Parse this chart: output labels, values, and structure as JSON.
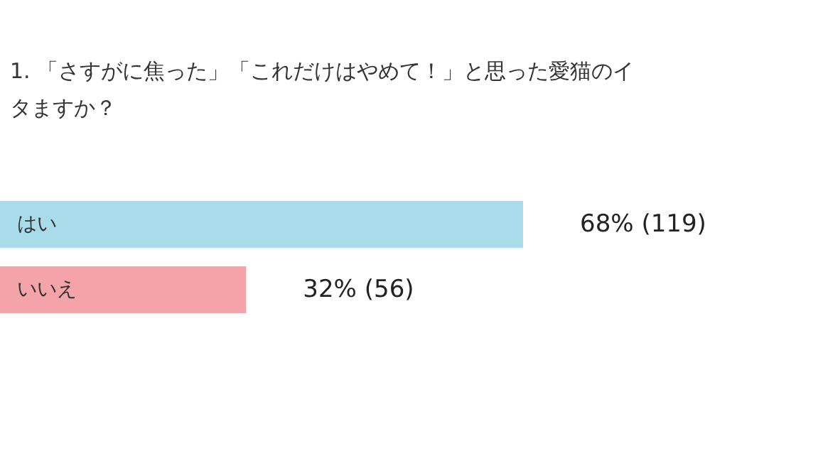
{
  "chart_data": {
    "type": "bar",
    "orientation": "horizontal",
    "title": "1. 「さすがに焦った」「これだけはやめて！」と思った愛猫のイタますか？",
    "categories": [
      "はい",
      "いいえ"
    ],
    "values": [
      68,
      32
    ],
    "colors": [
      "#a8dcea",
      "#f4a3a8"
    ],
    "value_labels": [
      "68% (119)",
      "32% (56)"
    ]
  }
}
